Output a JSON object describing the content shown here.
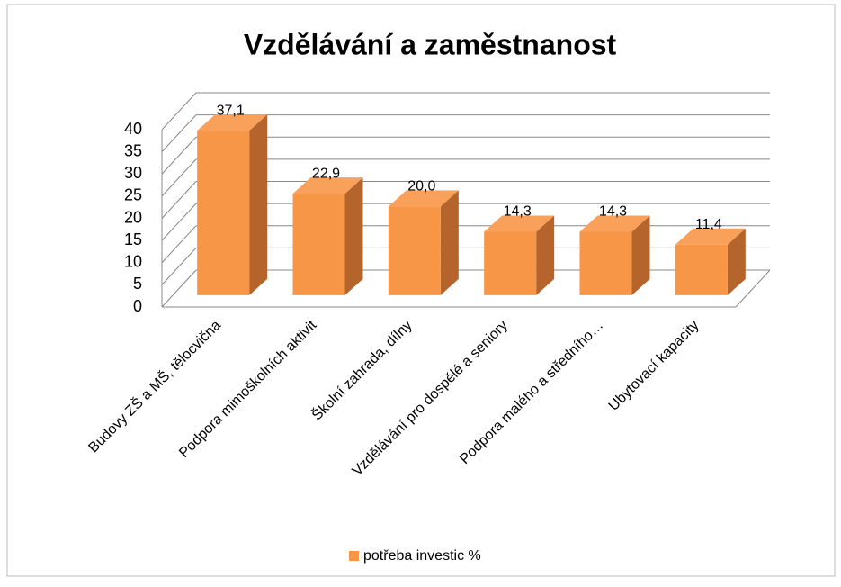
{
  "chart_data": {
    "type": "bar3d",
    "title": "Vzdělávání a zaměstnanost",
    "categories": [
      "Budovy ZŠ a MŠ, tělocvična",
      "Podpora mimoškolních aktivit",
      "Školní zahrada, dílny",
      "Vzdělávání pro dospělé a seniory",
      "Podpora malého a středního…",
      "Ubytovací kapacity"
    ],
    "series": [
      {
        "name": "potřeba investic %",
        "color": "#f79646",
        "values": [
          37.1,
          22.9,
          20.0,
          14.3,
          14.3,
          11.4
        ],
        "value_labels": [
          "37,1",
          "22,9",
          "20,0",
          "14,3",
          "14,3",
          "11,4"
        ]
      }
    ],
    "ylim": [
      0,
      40
    ],
    "yticks": [
      0,
      5,
      10,
      15,
      20,
      25,
      30,
      35,
      40
    ],
    "grid": true,
    "legend": "bottom"
  }
}
